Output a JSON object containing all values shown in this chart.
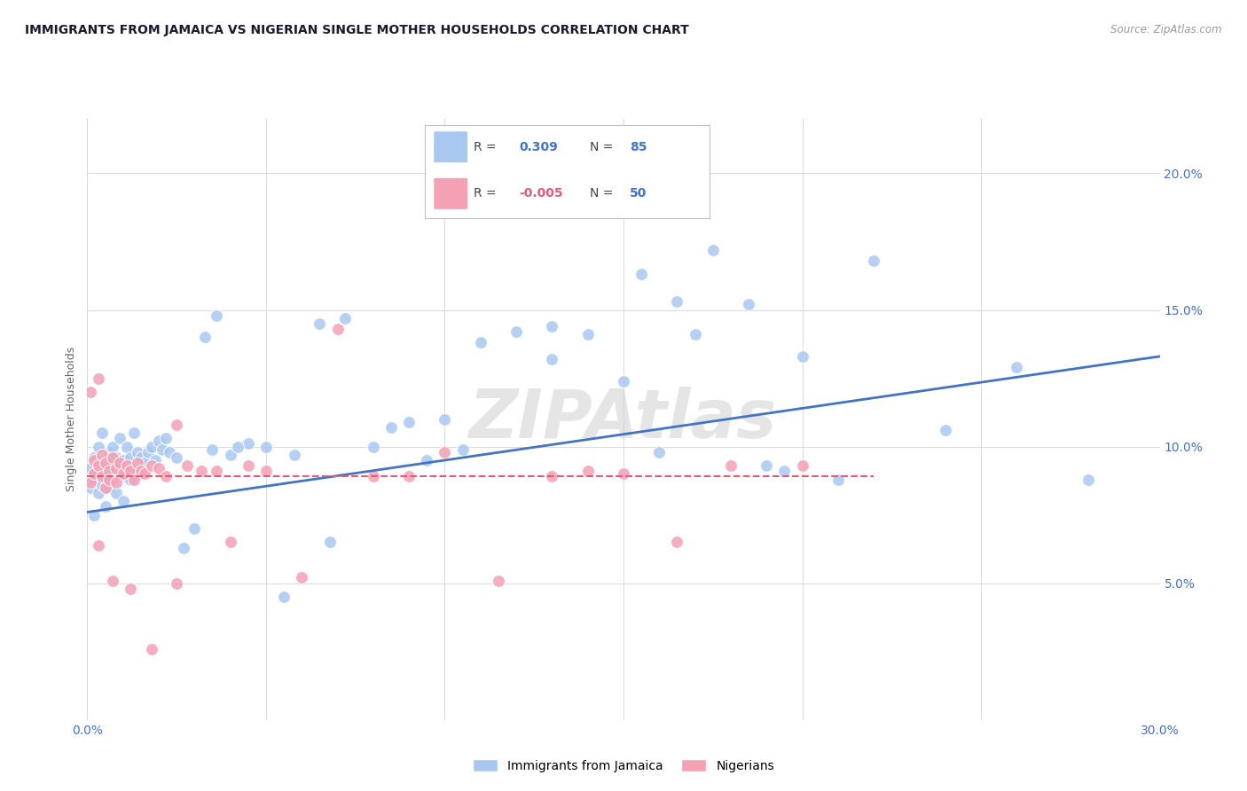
{
  "title": "IMMIGRANTS FROM JAMAICA VS NIGERIAN SINGLE MOTHER HOUSEHOLDS CORRELATION CHART",
  "source": "Source: ZipAtlas.com",
  "ylabel": "Single Mother Households",
  "xlim": [
    0.0,
    0.3
  ],
  "ylim": [
    0.0,
    0.22
  ],
  "blue_color": "#a8c8f0",
  "pink_color": "#f4a0b5",
  "blue_line_color": "#4472c4",
  "pink_line_color": "#e05a7a",
  "tick_color": "#4472c4",
  "grid_color": "#d8d8d8",
  "background_color": "#ffffff",
  "watermark": "ZIPAtlas",
  "R_blue": 0.309,
  "N_blue": 85,
  "R_pink": -0.005,
  "N_pink": 50,
  "blue_line_x0": 0.0,
  "blue_line_y0": 0.076,
  "blue_line_x1": 0.3,
  "blue_line_y1": 0.133,
  "pink_line_x0": 0.0,
  "pink_line_y0": 0.089,
  "pink_line_x1": 0.22,
  "pink_line_y1": 0.089,
  "blue_x": [
    0.001,
    0.001,
    0.002,
    0.002,
    0.002,
    0.003,
    0.003,
    0.003,
    0.004,
    0.004,
    0.004,
    0.005,
    0.005,
    0.005,
    0.006,
    0.006,
    0.006,
    0.007,
    0.007,
    0.007,
    0.008,
    0.008,
    0.009,
    0.009,
    0.01,
    0.01,
    0.01,
    0.011,
    0.011,
    0.012,
    0.012,
    0.013,
    0.013,
    0.014,
    0.015,
    0.015,
    0.016,
    0.017,
    0.018,
    0.019,
    0.02,
    0.021,
    0.022,
    0.023,
    0.025,
    0.027,
    0.03,
    0.033,
    0.036,
    0.04,
    0.045,
    0.05,
    0.058,
    0.065,
    0.072,
    0.08,
    0.09,
    0.1,
    0.11,
    0.12,
    0.13,
    0.14,
    0.155,
    0.165,
    0.175,
    0.19,
    0.2,
    0.22,
    0.24,
    0.26,
    0.28,
    0.13,
    0.15,
    0.16,
    0.17,
    0.185,
    0.195,
    0.21,
    0.095,
    0.105,
    0.035,
    0.042,
    0.055,
    0.068,
    0.085
  ],
  "blue_y": [
    0.085,
    0.092,
    0.088,
    0.075,
    0.096,
    0.09,
    0.083,
    0.1,
    0.093,
    0.086,
    0.105,
    0.089,
    0.095,
    0.078,
    0.091,
    0.098,
    0.085,
    0.093,
    0.1,
    0.088,
    0.096,
    0.083,
    0.091,
    0.103,
    0.089,
    0.095,
    0.08,
    0.093,
    0.1,
    0.088,
    0.096,
    0.092,
    0.105,
    0.098,
    0.09,
    0.096,
    0.094,
    0.098,
    0.1,
    0.095,
    0.102,
    0.099,
    0.103,
    0.098,
    0.096,
    0.063,
    0.07,
    0.14,
    0.148,
    0.097,
    0.101,
    0.1,
    0.097,
    0.145,
    0.147,
    0.1,
    0.109,
    0.11,
    0.138,
    0.142,
    0.144,
    0.141,
    0.163,
    0.153,
    0.172,
    0.093,
    0.133,
    0.168,
    0.106,
    0.129,
    0.088,
    0.132,
    0.124,
    0.098,
    0.141,
    0.152,
    0.091,
    0.088,
    0.095,
    0.099,
    0.099,
    0.1,
    0.045,
    0.065,
    0.107
  ],
  "pink_x": [
    0.001,
    0.001,
    0.002,
    0.002,
    0.003,
    0.003,
    0.004,
    0.004,
    0.005,
    0.005,
    0.006,
    0.006,
    0.007,
    0.008,
    0.008,
    0.009,
    0.01,
    0.011,
    0.012,
    0.013,
    0.014,
    0.015,
    0.016,
    0.018,
    0.02,
    0.022,
    0.025,
    0.028,
    0.032,
    0.036,
    0.04,
    0.045,
    0.05,
    0.06,
    0.07,
    0.08,
    0.09,
    0.1,
    0.115,
    0.13,
    0.14,
    0.15,
    0.165,
    0.18,
    0.2,
    0.003,
    0.007,
    0.012,
    0.018,
    0.025
  ],
  "pink_y": [
    0.087,
    0.12,
    0.09,
    0.095,
    0.093,
    0.125,
    0.089,
    0.097,
    0.085,
    0.094,
    0.091,
    0.088,
    0.096,
    0.092,
    0.087,
    0.094,
    0.09,
    0.093,
    0.091,
    0.088,
    0.094,
    0.091,
    0.09,
    0.093,
    0.092,
    0.089,
    0.108,
    0.093,
    0.091,
    0.091,
    0.065,
    0.093,
    0.091,
    0.052,
    0.143,
    0.089,
    0.089,
    0.098,
    0.051,
    0.089,
    0.091,
    0.09,
    0.065,
    0.093,
    0.093,
    0.064,
    0.051,
    0.048,
    0.026,
    0.05
  ]
}
